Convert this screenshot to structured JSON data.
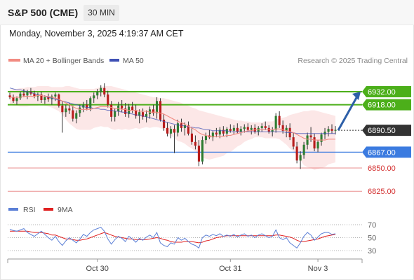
{
  "header": {
    "symbol": "S&P 500 (CME)",
    "timeframe": "30 MIN"
  },
  "datetime": "Monday, November 3, 2025 4:19:37 AM CET",
  "legend": {
    "ma20_label": "MA 20 + Bollinger Bands",
    "ma50_label": "MA 50",
    "ma20_color": "#f28b82",
    "ma50_color": "#3f51b5"
  },
  "credit": "Research © 2025 Trading Central",
  "rsi_legend": {
    "rsi_label": "RSI",
    "ma_label": "9MA",
    "rsi_color": "#5b7fd6",
    "ma_color": "#e02020"
  },
  "colors": {
    "green": "#4caf1a",
    "blue": "#3b7be0",
    "red": "#e57373",
    "current": "#333333",
    "bullish_candle": "#2e7d32",
    "bearish_candle": "#b71c1c"
  },
  "chart_data": {
    "type": "candlestick",
    "y_range": [
      6833,
      6945
    ],
    "price_levels": [
      {
        "value": 6932.0,
        "label": "6932.00",
        "kind": "resistance"
      },
      {
        "value": 6918.0,
        "label": "6918.00",
        "kind": "resistance"
      },
      {
        "value": 6890.5,
        "label": "6890.50",
        "kind": "current"
      },
      {
        "value": 6867.0,
        "label": "6867.00",
        "kind": "pivot"
      },
      {
        "value": 6850.0,
        "label": "6850.00",
        "kind": "support"
      },
      {
        "value": 6825.0,
        "label": "6825.00",
        "kind": "support"
      }
    ],
    "x_ticks": [
      "Oct 30",
      "Oct 31",
      "Nov 3"
    ],
    "ohlc": [
      [
        6928,
        6931,
        6924,
        6926
      ],
      [
        6926,
        6929,
        6920,
        6922
      ],
      [
        6922,
        6927,
        6918,
        6925
      ],
      [
        6925,
        6932,
        6923,
        6930
      ],
      [
        6930,
        6935,
        6926,
        6928
      ],
      [
        6928,
        6934,
        6924,
        6932
      ],
      [
        6932,
        6936,
        6928,
        6930
      ],
      [
        6930,
        6933,
        6925,
        6927
      ],
      [
        6927,
        6931,
        6922,
        6929
      ],
      [
        6929,
        6932,
        6920,
        6923
      ],
      [
        6923,
        6928,
        6919,
        6926
      ],
      [
        6926,
        6930,
        6921,
        6924
      ],
      [
        6924,
        6929,
        6918,
        6927
      ],
      [
        6927,
        6931,
        6922,
        6929
      ],
      [
        6929,
        6930,
        6915,
        6917
      ],
      [
        6917,
        6922,
        6888,
        6910
      ],
      [
        6910,
        6918,
        6905,
        6914
      ],
      [
        6914,
        6920,
        6908,
        6912
      ],
      [
        6912,
        6917,
        6900,
        6903
      ],
      [
        6903,
        6912,
        6898,
        6909
      ],
      [
        6909,
        6918,
        6905,
        6915
      ],
      [
        6915,
        6921,
        6910,
        6918
      ],
      [
        6918,
        6923,
        6912,
        6914
      ],
      [
        6914,
        6927,
        6911,
        6925
      ],
      [
        6925,
        6931,
        6920,
        6928
      ],
      [
        6928,
        6935,
        6924,
        6932
      ],
      [
        6932,
        6939,
        6927,
        6936
      ],
      [
        6936,
        6941,
        6926,
        6929
      ],
      [
        6929,
        6933,
        6915,
        6918
      ],
      [
        6918,
        6922,
        6900,
        6905
      ],
      [
        6905,
        6914,
        6900,
        6911
      ],
      [
        6911,
        6921,
        6906,
        6917
      ],
      [
        6917,
        6923,
        6910,
        6914
      ],
      [
        6914,
        6920,
        6905,
        6908
      ],
      [
        6908,
        6919,
        6904,
        6916
      ],
      [
        6916,
        6921,
        6909,
        6912
      ],
      [
        6912,
        6918,
        6903,
        6906
      ],
      [
        6906,
        6913,
        6898,
        6910
      ],
      [
        6910,
        6914,
        6902,
        6905
      ],
      [
        6905,
        6912,
        6899,
        6908
      ],
      [
        6908,
        6916,
        6903,
        6913
      ],
      [
        6913,
        6918,
        6906,
        6909
      ],
      [
        6909,
        6926,
        6903,
        6922
      ],
      [
        6922,
        6925,
        6900,
        6902
      ],
      [
        6902,
        6908,
        6890,
        6893
      ],
      [
        6893,
        6899,
        6884,
        6887
      ],
      [
        6887,
        6895,
        6882,
        6892
      ],
      [
        6892,
        6896,
        6866,
        6888
      ],
      [
        6888,
        6902,
        6884,
        6898
      ],
      [
        6898,
        6903,
        6889,
        6893
      ],
      [
        6893,
        6899,
        6885,
        6896
      ],
      [
        6896,
        6900,
        6885,
        6887
      ],
      [
        6887,
        6893,
        6875,
        6878
      ],
      [
        6878,
        6885,
        6870,
        6874
      ],
      [
        6874,
        6880,
        6852,
        6857
      ],
      [
        6857,
        6884,
        6854,
        6880
      ],
      [
        6880,
        6888,
        6876,
        6885
      ],
      [
        6885,
        6891,
        6881,
        6883
      ],
      [
        6883,
        6890,
        6879,
        6888
      ],
      [
        6888,
        6893,
        6883,
        6886
      ],
      [
        6886,
        6894,
        6882,
        6891
      ],
      [
        6891,
        6895,
        6884,
        6887
      ],
      [
        6887,
        6894,
        6883,
        6892
      ],
      [
        6892,
        6897,
        6888,
        6890
      ],
      [
        6890,
        6896,
        6886,
        6893
      ],
      [
        6893,
        6898,
        6887,
        6889
      ],
      [
        6889,
        6895,
        6885,
        6892
      ],
      [
        6892,
        6897,
        6888,
        6894
      ],
      [
        6894,
        6898,
        6889,
        6891
      ],
      [
        6891,
        6896,
        6886,
        6893
      ],
      [
        6893,
        6897,
        6887,
        6889
      ],
      [
        6889,
        6895,
        6885,
        6893
      ],
      [
        6893,
        6898,
        6889,
        6895
      ],
      [
        6895,
        6900,
        6891,
        6893
      ],
      [
        6893,
        6896,
        6887,
        6889
      ],
      [
        6889,
        6894,
        6884,
        6891
      ],
      [
        6891,
        6909,
        6888,
        6906
      ],
      [
        6906,
        6911,
        6893,
        6896
      ],
      [
        6896,
        6901,
        6887,
        6890
      ],
      [
        6890,
        6896,
        6883,
        6893
      ],
      [
        6893,
        6898,
        6880,
        6883
      ],
      [
        6883,
        6888,
        6870,
        6873
      ],
      [
        6873,
        6878,
        6855,
        6858
      ],
      [
        6858,
        6868,
        6849,
        6864
      ],
      [
        6864,
        6878,
        6860,
        6875
      ],
      [
        6875,
        6888,
        6870,
        6885
      ],
      [
        6885,
        6894,
        6878,
        6883
      ],
      [
        6883,
        6887,
        6868,
        6871
      ],
      [
        6871,
        6880,
        6867,
        6878
      ],
      [
        6878,
        6888,
        6874,
        6886
      ],
      [
        6886,
        6893,
        6881,
        6889
      ],
      [
        6889,
        6895,
        6884,
        6892
      ],
      [
        6892,
        6897,
        6887,
        6890
      ],
      [
        6890,
        6895,
        6886,
        6891
      ]
    ],
    "ma20": [
      6926,
      6926,
      6926,
      6926,
      6927,
      6927,
      6927,
      6927,
      6928,
      6928,
      6927,
      6927,
      6926,
      6925,
      6924,
      6922,
      6920,
      6918,
      6916,
      6914,
      6913,
      6913,
      6913,
      6913,
      6914,
      6915,
      6916,
      6916,
      6916,
      6915,
      6914,
      6914,
      6913,
      6913,
      6912,
      6912,
      6912,
      6911,
      6911,
      6911,
      6910,
      6910,
      6910,
      6909,
      6908,
      6906,
      6904,
      6902,
      6900,
      6899,
      6897,
      6895,
      6893,
      6891,
      6888,
      6886,
      6885,
      6884,
      6884,
      6884,
      6884,
      6884,
      6885,
      6885,
      6886,
      6887,
      6888,
      6889,
      6890,
      6890,
      6891,
      6891,
      6891,
      6891,
      6891,
      6891,
      6892,
      6892,
      6891,
      6890,
      6889,
      6888,
      6886,
      6884,
      6882,
      6881,
      6881,
      6880,
      6880,
      6880,
      6880,
      6881,
      6881,
      6881
    ],
    "bb_upper": [
      6934,
      6935,
      6935,
      6936,
      6936,
      6937,
      6937,
      6937,
      6938,
      6938,
      6938,
      6938,
      6937,
      6937,
      6937,
      6937,
      6938,
      6938,
      6937,
      6936,
      6935,
      6935,
      6935,
      6935,
      6935,
      6936,
      6937,
      6938,
      6938,
      6938,
      6937,
      6936,
      6935,
      6934,
      6933,
      6932,
      6931,
      6930,
      6929,
      6928,
      6927,
      6926,
      6926,
      6925,
      6925,
      6924,
      6923,
      6922,
      6921,
      6920,
      6918,
      6917,
      6915,
      6914,
      6912,
      6911,
      6910,
      6909,
      6908,
      6907,
      6906,
      6905,
      6904,
      6903,
      6902,
      6901,
      6901,
      6900,
      6900,
      6899,
      6899,
      6899,
      6899,
      6900,
      6900,
      6900,
      6902,
      6903,
      6904,
      6905,
      6907,
      6908,
      6909,
      6910,
      6911,
      6911,
      6912,
      6912,
      6911,
      6910,
      6909,
      6908,
      6907,
      6906
    ],
    "bb_lower": [
      6918,
      6917,
      6917,
      6916,
      6916,
      6916,
      6917,
      6917,
      6917,
      6918,
      6917,
      6916,
      6915,
      6913,
      6911,
      6907,
      6902,
      6898,
      6895,
      6892,
      6891,
      6891,
      6891,
      6891,
      6893,
      6894,
      6895,
      6894,
      6894,
      6892,
      6891,
      6892,
      6891,
      6892,
      6891,
      6892,
      6893,
      6892,
      6893,
      6894,
      6893,
      6894,
      6894,
      6893,
      6891,
      6888,
      6885,
      6882,
      6879,
      6878,
      6876,
      6873,
      6871,
      6868,
      6864,
      6861,
      6860,
      6859,
      6860,
      6861,
      6862,
      6863,
      6866,
      6867,
      6870,
      6873,
      6875,
      6878,
      6880,
      6881,
      6883,
      6883,
      6883,
      6882,
      6882,
      6882,
      6882,
      6881,
      6878,
      6875,
      6871,
      6868,
      6863,
      6858,
      6853,
      6851,
      6850,
      6848,
      6849,
      6850,
      6851,
      6854,
      6855,
      6856
    ],
    "ma50": [
      6936,
      6935,
      6934,
      6934,
      6933,
      6932,
      6931,
      6930,
      6929,
      6928,
      6927,
      6926,
      6925,
      6924,
      6923,
      6922,
      6921,
      6920,
      6919,
      6918,
      6917,
      6916,
      6915,
      6915,
      6914,
      6914,
      6913,
      6913,
      6912,
      6912,
      6911,
      6911,
      6910,
      6910,
      6909,
      6908,
      6907,
      6907,
      6906,
      6905,
      6904,
      6903,
      6902,
      6901,
      6900,
      6899,
      6898,
      6897,
      6896,
      6896,
      6895,
      6894,
      6894,
      6893,
      6893,
      6892,
      6891,
      6891,
      6890,
      6890,
      6890,
      6890,
      6890,
      6889,
      6889,
      6889,
      6889,
      6889,
      6889,
      6889,
      6889,
      6889,
      6889,
      6889,
      6889,
      6889,
      6889,
      6889,
      6889,
      6888,
      6888,
      6888,
      6887,
      6887,
      6887,
      6887,
      6887,
      6887,
      6887,
      6887,
      6887,
      6887,
      6887,
      6887
    ],
    "forecast_arrow": {
      "from": 6890.5,
      "to": 6932
    },
    "rsi": {
      "levels": [
        70,
        50,
        30
      ],
      "y_range": [
        20,
        80
      ],
      "rsi": [
        63,
        61,
        60,
        62,
        64,
        58,
        55,
        52,
        56,
        60,
        55,
        50,
        46,
        52,
        44,
        38,
        45,
        50,
        46,
        42,
        48,
        55,
        52,
        58,
        62,
        64,
        66,
        60,
        48,
        40,
        47,
        52,
        49,
        44,
        52,
        48,
        43,
        49,
        46,
        51,
        54,
        50,
        58,
        42,
        38,
        36,
        42,
        40,
        50,
        46,
        49,
        44,
        40,
        38,
        34,
        50,
        54,
        52,
        55,
        53,
        56,
        52,
        54,
        52,
        55,
        51,
        54,
        56,
        52,
        54,
        50,
        54,
        56,
        53,
        50,
        52,
        62,
        50,
        47,
        50,
        42,
        38,
        34,
        42,
        52,
        58,
        54,
        46,
        51,
        56,
        58,
        58,
        55,
        56
      ],
      "ma9": [
        60,
        60,
        60,
        60,
        60,
        60,
        59,
        58,
        58,
        58,
        57,
        56,
        54,
        54,
        52,
        50,
        48,
        48,
        47,
        46,
        46,
        47,
        48,
        50,
        52,
        54,
        56,
        58,
        56,
        54,
        52,
        51,
        50,
        49,
        48,
        48,
        47,
        47,
        47,
        47,
        48,
        49,
        50,
        49,
        47,
        46,
        44,
        43,
        43,
        43,
        44,
        44,
        44,
        43,
        42,
        43,
        45,
        46,
        48,
        50,
        51,
        52,
        53,
        53,
        53,
        53,
        53,
        53,
        53,
        53,
        53,
        53,
        53,
        53,
        53,
        53,
        54,
        54,
        53,
        52,
        51,
        49,
        46,
        44,
        44,
        45,
        46,
        47,
        48,
        50,
        52,
        53,
        54,
        55
      ]
    }
  }
}
